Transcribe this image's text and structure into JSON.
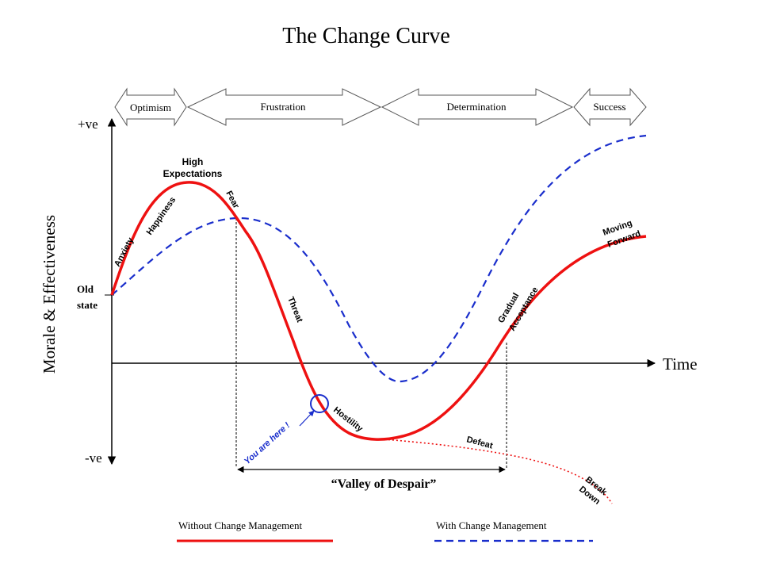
{
  "title": "The Change Curve",
  "phases": [
    {
      "label": "Optimism"
    },
    {
      "label": "Frustration"
    },
    {
      "label": "Determination"
    },
    {
      "label": "Success"
    }
  ],
  "axes": {
    "y_label": "Morale & Effectiveness",
    "y_top": "+ve",
    "y_bottom": "-ve",
    "x_label": "Time",
    "y_origin_line1": "Old",
    "y_origin_line2": "state"
  },
  "stages": {
    "anxiety": "Anxiety",
    "happiness": "Happiness",
    "high_expectations_line1": "High",
    "high_expectations_line2": "Expectations",
    "fear": "Fear",
    "threat": "Threat",
    "hostility": "Hostility",
    "defeat": "Defeat",
    "break_down_line1": "Break",
    "break_down_line2": "Down",
    "gradual_line1": "Gradual",
    "gradual_line2": "Acceptance",
    "moving_line1": "Moving",
    "moving_line2": "Forward"
  },
  "marker": {
    "label": "You are here !"
  },
  "valley": {
    "label": "“Valley of Despair”"
  },
  "legend": {
    "without": {
      "label": "Without Change Management",
      "color": "#ee1111"
    },
    "with": {
      "label": "With Change Management",
      "color": "#1a2ecc"
    }
  }
}
